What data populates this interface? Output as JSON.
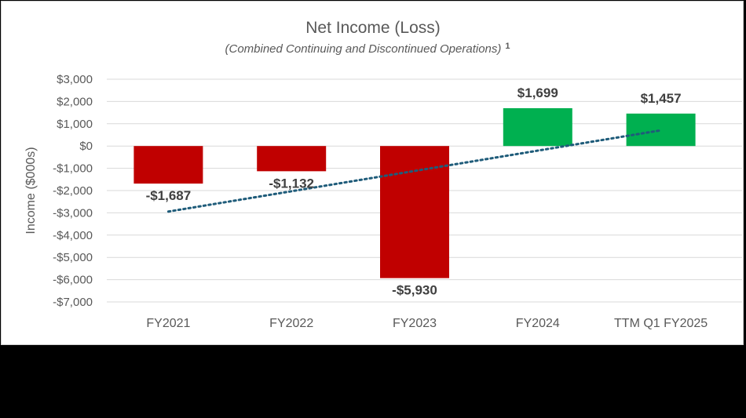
{
  "chart_data": {
    "type": "bar",
    "title": "Net Income (Loss)",
    "subtitle": "(Combined Continuing and Discontinued Operations)",
    "subtitle_footnote": "1",
    "xlabel": "",
    "ylabel": "Income ($000s)",
    "ylim": [
      -7000,
      3000
    ],
    "yticks": [
      3000,
      2000,
      1000,
      0,
      -1000,
      -2000,
      -3000,
      -4000,
      -5000,
      -6000,
      -7000
    ],
    "ytick_labels": [
      "$3,000",
      "$2,000",
      "$1,000",
      "$0",
      "-$1,000",
      "-$2,000",
      "-$3,000",
      "-$4,000",
      "-$5,000",
      "-$6,000",
      "-$7,000"
    ],
    "categories": [
      "FY2021",
      "FY2022",
      "FY2023",
      "FY2024",
      "TTM Q1 FY2025"
    ],
    "values": [
      -1687,
      -1132,
      -5930,
      1699,
      1457
    ],
    "data_labels": [
      "-$1,687",
      "-$1,132",
      "-$5,930",
      "$1,699",
      "$1,457"
    ],
    "colors": {
      "negative": "#C00000",
      "positive": "#00B050",
      "trendline": "#1F5C7A",
      "grid": "#D9D9D9"
    },
    "trendline": "linear, dotted",
    "grid": true,
    "legend": "none"
  }
}
